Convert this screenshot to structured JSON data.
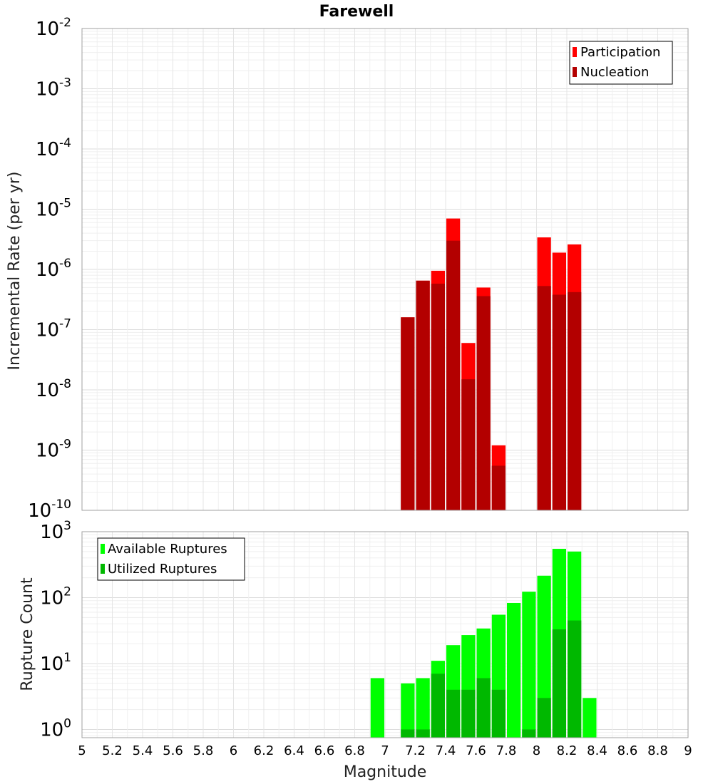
{
  "chart_data": [
    {
      "type": "bar",
      "title": "Farewell",
      "xlabel": "",
      "ylabel": "Incremental Rate (per yr)",
      "xlim": [
        5,
        9
      ],
      "ylim": [
        1e-10,
        0.01
      ],
      "yscale": "log",
      "grid": true,
      "legend_position": "top-right",
      "y_ticks": [
        {
          "base": "10",
          "exp": "-10"
        },
        {
          "base": "10",
          "exp": "-9"
        },
        {
          "base": "10",
          "exp": "-8"
        },
        {
          "base": "10",
          "exp": "-7"
        },
        {
          "base": "10",
          "exp": "-6"
        },
        {
          "base": "10",
          "exp": "-5"
        },
        {
          "base": "10",
          "exp": "-4"
        },
        {
          "base": "10",
          "exp": "-3"
        },
        {
          "base": "10",
          "exp": "-2"
        }
      ],
      "series": [
        {
          "name": "Participation",
          "color": "#ff0000",
          "x": [
            7.1,
            7.2,
            7.3,
            7.4,
            7.5,
            7.6,
            7.7,
            8.0,
            8.1,
            8.2
          ],
          "values": [
            1.6e-07,
            6.5e-07,
            9.5e-07,
            7e-06,
            6e-08,
            5e-07,
            1.2e-09,
            3.4e-06,
            1.9e-06,
            2.6e-06
          ]
        },
        {
          "name": "Nucleation",
          "color": "#b30000",
          "x": [
            7.1,
            7.2,
            7.3,
            7.4,
            7.5,
            7.6,
            7.7,
            8.0,
            8.1,
            8.2
          ],
          "values": [
            1.6e-07,
            6.5e-07,
            5.8e-07,
            3e-06,
            1.5e-08,
            3.6e-07,
            5.5e-10,
            5.3e-07,
            3.8e-07,
            4.2e-07
          ]
        }
      ]
    },
    {
      "type": "bar",
      "title": "",
      "xlabel": "Magnitude",
      "ylabel": "Rupture Count",
      "xlim": [
        5,
        9
      ],
      "ylim": [
        0.75,
        1000
      ],
      "yscale": "log",
      "grid": true,
      "legend_position": "top-left",
      "y_ticks": [
        {
          "base": "10",
          "exp": "0"
        },
        {
          "base": "10",
          "exp": "1"
        },
        {
          "base": "10",
          "exp": "2"
        },
        {
          "base": "10",
          "exp": "3"
        }
      ],
      "x_ticks": [
        "5",
        "5.2",
        "5.4",
        "5.6",
        "5.8",
        "6",
        "6.2",
        "6.4",
        "6.6",
        "6.8",
        "7",
        "7.2",
        "7.4",
        "7.6",
        "7.8",
        "8",
        "8.2",
        "8.4",
        "8.6",
        "8.8",
        "9"
      ],
      "series": [
        {
          "name": "Available Ruptures",
          "color": "#00ff00",
          "x": [
            6.9,
            7.1,
            7.2,
            7.3,
            7.4,
            7.5,
            7.6,
            7.7,
            7.8,
            7.9,
            8.0,
            8.1,
            8.2,
            8.3
          ],
          "values": [
            6,
            5,
            6,
            11,
            19,
            27,
            34,
            55,
            83,
            123,
            215,
            550,
            500,
            3
          ]
        },
        {
          "name": "Utilized Ruptures",
          "color": "#00b800",
          "x": [
            7.1,
            7.2,
            7.3,
            7.4,
            7.5,
            7.6,
            7.7,
            7.9,
            8.0,
            8.1,
            8.2
          ],
          "values": [
            1,
            1,
            7,
            4,
            4,
            6,
            4,
            1,
            3,
            33,
            45
          ]
        }
      ]
    }
  ]
}
